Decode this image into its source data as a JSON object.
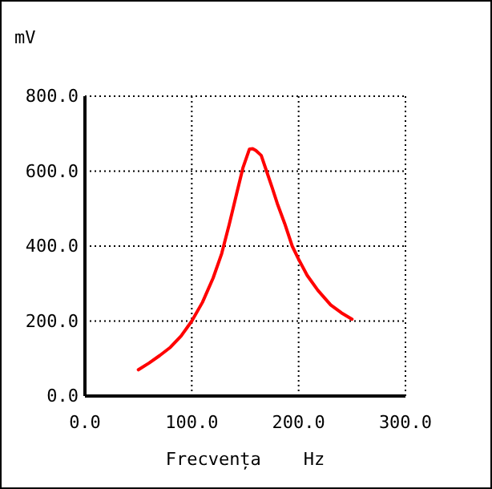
{
  "chart_data": {
    "type": "line",
    "xlabel": "Frecvența    Hz",
    "ylabel": "mV",
    "grid": true,
    "marker": "none",
    "line_style": "solid",
    "xlim": [
      0,
      300
    ],
    "ylim": [
      0,
      800
    ],
    "xticks": [
      {
        "value": 0,
        "label": "0.0"
      },
      {
        "value": 100,
        "label": "100.0"
      },
      {
        "value": 200,
        "label": "200.0"
      },
      {
        "value": 300,
        "label": "300.0"
      }
    ],
    "yticks": [
      {
        "value": 0,
        "label": "0.0"
      },
      {
        "value": 200,
        "label": "200.0"
      },
      {
        "value": 400,
        "label": "400.0"
      },
      {
        "value": 600,
        "label": "600.0"
      },
      {
        "value": 800,
        "label": "800.0"
      }
    ],
    "series": [
      {
        "color": "#ff0000",
        "x": [
          50,
          60,
          70,
          80,
          90,
          100,
          110,
          120,
          128,
          135,
          142,
          148,
          154,
          157,
          160,
          165,
          170,
          175,
          180,
          187,
          194,
          200,
          208,
          218,
          230,
          240,
          250
        ],
        "values": [
          70,
          88,
          108,
          130,
          160,
          200,
          250,
          315,
          380,
          457,
          540,
          610,
          659,
          660,
          655,
          642,
          600,
          558,
          514,
          460,
          400,
          365,
          322,
          282,
          243,
          222,
          205
        ]
      }
    ]
  }
}
